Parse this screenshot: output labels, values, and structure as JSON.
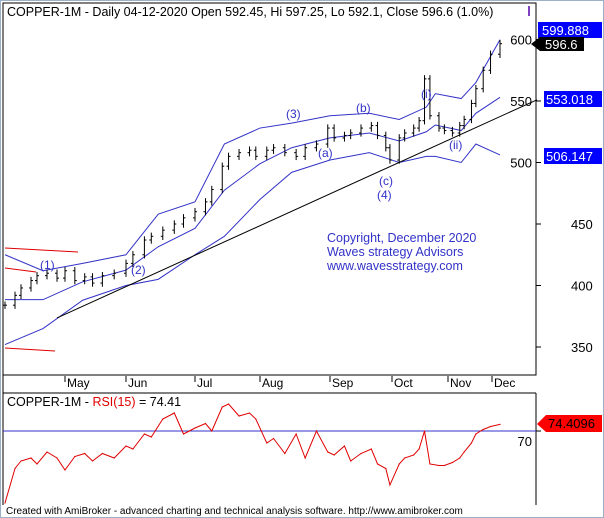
{
  "title": {
    "symbol": "COPPER-1M",
    "text": "COPPER-1M - Daily 04-12-2020 Open 592.45, Hi 597.25, Lo 592.1, Close 596.6 (1.0%)"
  },
  "rsi_title": {
    "symbol": "COPPER-1M - ",
    "indicator": "RSI(15)",
    "value_text": " = 74.41"
  },
  "copyright": [
    "Copyright, December 2020",
    "Waves strategy Advisors",
    "www.wavesstrategy.com"
  ],
  "footer": "Created with AmiBroker - advanced charting and technical analysis software. http://www.amibroker.com",
  "wave_labels": [
    "(1)",
    "(2)",
    "(3)",
    "(a)",
    "(b)",
    "(c)",
    "(4)",
    "(i)",
    "(ii)"
  ],
  "colors": {
    "price": "#000000",
    "bands": "#3232c8",
    "rsi": "#e00000",
    "rsi_level": "#3232c8",
    "highlight": "#0000ff",
    "rsi_badge": "#ff0000"
  },
  "chart_data": [
    {
      "type": "line",
      "title": "COPPER-1M - Daily 04-12-2020 Open 592.45, Hi 597.25, Lo 592.1, Close 596.6 (1.0%)",
      "x": [
        "2020-04-01",
        "2020-04-06",
        "2020-04-09",
        "2020-04-14",
        "2020-04-17",
        "2020-04-22",
        "2020-04-27",
        "2020-05-01",
        "2020-05-06",
        "2020-05-11",
        "2020-05-15",
        "2020-05-20",
        "2020-05-26",
        "2020-06-01",
        "2020-06-04",
        "2020-06-09",
        "2020-06-12",
        "2020-06-17",
        "2020-06-22",
        "2020-06-26",
        "2020-07-01",
        "2020-07-06",
        "2020-07-09",
        "2020-07-14",
        "2020-07-17",
        "2020-07-22",
        "2020-07-27",
        "2020-07-30",
        "2020-08-04",
        "2020-08-07",
        "2020-08-12",
        "2020-08-17",
        "2020-08-21",
        "2020-08-26",
        "2020-08-31",
        "2020-09-03",
        "2020-09-08",
        "2020-09-11",
        "2020-09-16",
        "2020-09-21",
        "2020-09-24",
        "2020-09-28",
        "2020-09-30",
        "2020-10-05",
        "2020-10-08",
        "2020-10-13",
        "2020-10-16",
        "2020-10-19",
        "2020-10-22",
        "2020-10-27",
        "2020-10-30",
        "2020-11-04",
        "2020-11-09",
        "2020-11-12",
        "2020-11-17",
        "2020-11-20",
        "2020-11-25",
        "2020-11-30",
        "2020-12-04"
      ],
      "series": [
        {
          "name": "COPPER-1M",
          "values": [
            384,
            392,
            398,
            404,
            408,
            410,
            406,
            412,
            404,
            407,
            402,
            408,
            410,
            418,
            425,
            437,
            440,
            445,
            450,
            455,
            460,
            468,
            478,
            497,
            505,
            508,
            510,
            505,
            510,
            512,
            508,
            505,
            512,
            515,
            528,
            520,
            522,
            524,
            528,
            530,
            522,
            512,
            502,
            520,
            524,
            528,
            534,
            568,
            538,
            528,
            526,
            524,
            530,
            535,
            548,
            560,
            575,
            588,
            596.6
          ]
        }
      ],
      "bands": {
        "x": [
          "2020-04-01",
          "2020-04-20",
          "2020-05-10",
          "2020-06-01",
          "2020-06-15",
          "2020-07-01",
          "2020-07-15",
          "2020-08-01",
          "2020-08-15",
          "2020-09-01",
          "2020-09-20",
          "2020-10-05",
          "2020-10-20",
          "2020-10-25",
          "2020-11-10",
          "2020-11-20",
          "2020-12-04"
        ],
        "upper": [
          425,
          412,
          418,
          425,
          458,
          468,
          515,
          528,
          532,
          538,
          540,
          535,
          545,
          556,
          552,
          565,
          599.888
        ],
        "lower": [
          352,
          365,
          388,
          400,
          405,
          425,
          440,
          470,
          492,
          502,
          508,
          500,
          505,
          505,
          500,
          515,
          506.147
        ]
      },
      "trendline": {
        "x": [
          "2020-04-27",
          "2020-12-04"
        ],
        "y": [
          373.6,
          551
        ]
      },
      "value_badges": {
        "upper": "599.888",
        "close": "596.6",
        "middle": "553.018",
        "lower": "506.147"
      },
      "xticks": [
        "May",
        "Jun",
        "Jul",
        "Aug",
        "Sep",
        "Oct",
        "Nov",
        "Dec"
      ],
      "yticks": [
        350,
        400,
        450,
        500,
        550,
        600
      ],
      "ylim": [
        340,
        610
      ],
      "grid": false
    },
    {
      "type": "line",
      "title": "COPPER-1M - RSI(15) = 74.41",
      "series": [
        {
          "name": "RSI(15)",
          "values": [
            22,
            45,
            50,
            52,
            48,
            56,
            52,
            44,
            53,
            55,
            50,
            55,
            52,
            60,
            58,
            68,
            66,
            78,
            82,
            68,
            72,
            75,
            70,
            86,
            88,
            80,
            82,
            78,
            62,
            65,
            55,
            68,
            52,
            70,
            56,
            54,
            60,
            50,
            55,
            58,
            48,
            45,
            34,
            48,
            52,
            54,
            58,
            70,
            48,
            47,
            47,
            49,
            52,
            56,
            62,
            68,
            71,
            73,
            74.41
          ]
        }
      ],
      "level": 70,
      "yticks": [
        70
      ],
      "last_value_badge": "74.4096",
      "grid": false
    }
  ]
}
